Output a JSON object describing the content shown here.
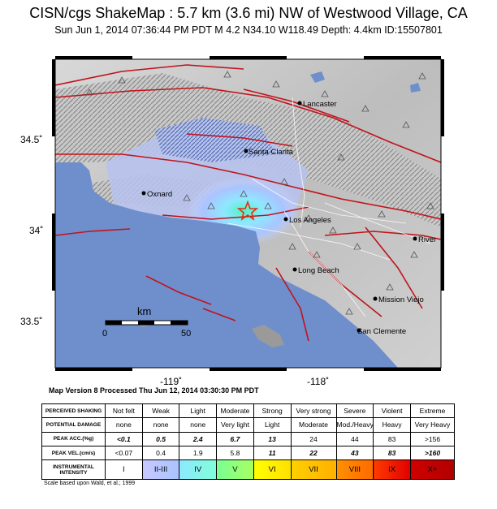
{
  "title": "CISN/cgs ShakeMap : 5.7 km (3.6 mi) NW of Westwood Village, CA",
  "subtitle": "Sun Jun  1, 2014 07:36:44 PM PDT   M 4.2   N34.10 W118.49   Depth: 4.4km   ID:15507801",
  "map": {
    "lat_ticks": [
      "34.5˚",
      "34˚",
      "33.5˚"
    ],
    "lon_ticks": [
      "-119˚",
      "-118˚"
    ],
    "cities": [
      {
        "name": "Lancaster"
      },
      {
        "name": "Santa Clarita"
      },
      {
        "name": "Oxnard"
      },
      {
        "name": "Los Angeles"
      },
      {
        "name": "Long Beach"
      },
      {
        "name": "River"
      },
      {
        "name": "Mission Viejo"
      },
      {
        "name": "San Clemente"
      }
    ],
    "scale_label": "km",
    "scale_start": "0",
    "scale_end": "50",
    "colors": {
      "ocean": "#6f8fcc",
      "fault": "#c0131b",
      "epicenter": "#e03010"
    }
  },
  "version_text": "Map Version 8 Processed Thu Jun 12, 2014 03:30:30 PM PDT",
  "legend": {
    "row_headers": {
      "shaking": "PERCEIVED SHAKING",
      "damage": "POTENTIAL DAMAGE",
      "acc": "PEAK ACC.(%g)",
      "vel": "PEAK VEL.(cm/s)",
      "intensity": "INSTRUMENTAL INTENSITY"
    },
    "shaking": [
      "Not felt",
      "Weak",
      "Light",
      "Moderate",
      "Strong",
      "Very strong",
      "Severe",
      "Violent",
      "Extreme"
    ],
    "damage": [
      "none",
      "none",
      "none",
      "Very light",
      "Light",
      "Moderate",
      "Mod./Heavy",
      "Heavy",
      "Very Heavy"
    ],
    "acc": [
      "<0.1",
      "0.5",
      "2.4",
      "6.7",
      "13",
      "24",
      "44",
      "83",
      ">156"
    ],
    "vel": [
      "<0.07",
      "0.4",
      "1.9",
      "5.8",
      "11",
      "22",
      "43",
      "83",
      ">160"
    ],
    "intensity": [
      "I",
      "II-III",
      "IV",
      "V",
      "VI",
      "VII",
      "VIII",
      "IX",
      "X+"
    ],
    "intensity_colors": [
      [
        "#ffffff",
        "#ffffff"
      ],
      [
        "#c8c8ff",
        "#a9c4ff"
      ],
      [
        "#8ee8ff",
        "#80ffd8"
      ],
      [
        "#7aff93",
        "#a8ff60"
      ],
      [
        "#ffff00",
        "#ffe000"
      ],
      [
        "#ffd000",
        "#ffb000"
      ],
      [
        "#ff9100",
        "#ff6a00"
      ],
      [
        "#ff3a00",
        "#e00000"
      ],
      [
        "#d00000",
        "#b00000"
      ]
    ]
  },
  "credit": "Scale based upon Wald, et al.; 1999"
}
